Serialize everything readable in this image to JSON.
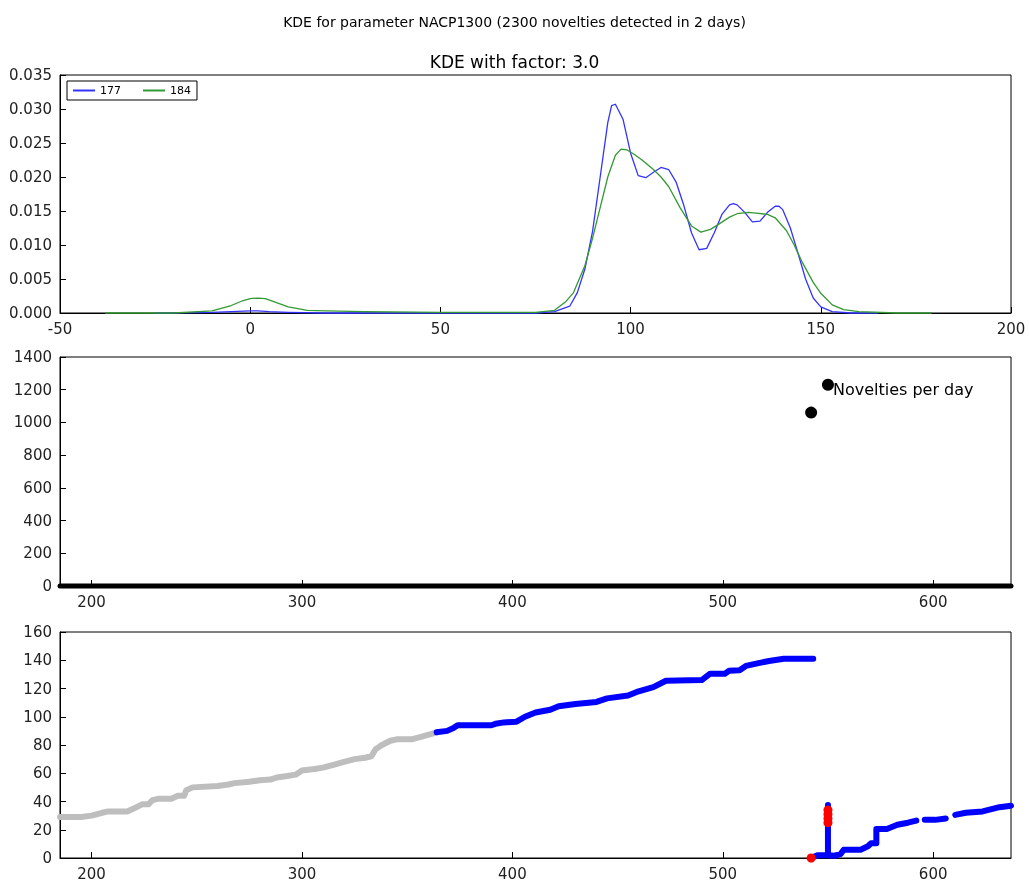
{
  "chart_data": [
    {
      "type": "line",
      "title": "KDE for parameter NACP1300 (2300 novelties detected in 2 days)",
      "subtitle": "KDE with factor: 3.0",
      "marker": "none",
      "legend": "top left",
      "line_style": "solid",
      "xlim": [
        -50,
        200
      ],
      "xticks": [
        -50,
        0,
        50,
        100,
        150,
        200
      ],
      "ylim": [
        0,
        0.035
      ],
      "yticks": [
        {
          "value": 0,
          "label": "0.000"
        },
        0.005,
        {
          "value": 0.01,
          "label": "0.010"
        },
        0.015,
        {
          "value": 0.02,
          "label": "0.020"
        },
        0.025,
        {
          "value": 0.03,
          "label": "0.030"
        },
        0.035
      ],
      "series": [
        {
          "name": "177",
          "color": "#3333ff",
          "x": [
            -25,
            -10,
            -5,
            0,
            2,
            5,
            10,
            20,
            50,
            75,
            80,
            84,
            86,
            88,
            90,
            92,
            94,
            95,
            96,
            98,
            100,
            102,
            104,
            106,
            108,
            110,
            112,
            114,
            116,
            118,
            120,
            122,
            124,
            126,
            127,
            128,
            130,
            132,
            134,
            136,
            138,
            139,
            140,
            142,
            144,
            146,
            148,
            150,
            153,
            158,
            165
          ],
          "values": [
            0,
            0.0001,
            0.0002,
            0.0003,
            0.0003,
            0.0002,
            0.0001,
            0,
            0,
            0,
            0.0002,
            0.001,
            0.003,
            0.0065,
            0.012,
            0.02,
            0.028,
            0.0305,
            0.0307,
            0.0285,
            0.0235,
            0.0202,
            0.0199,
            0.0207,
            0.0214,
            0.0211,
            0.0192,
            0.0158,
            0.0118,
            0.0093,
            0.0095,
            0.0118,
            0.0145,
            0.0159,
            0.0161,
            0.0159,
            0.0148,
            0.0134,
            0.0135,
            0.0148,
            0.0157,
            0.0157,
            0.0152,
            0.0125,
            0.0088,
            0.005,
            0.0022,
            0.0009,
            0.0002,
            0,
            0
          ]
        },
        {
          "name": "184",
          "color": "#339933",
          "x": [
            -38,
            -20,
            -10,
            -5,
            -2,
            0,
            2,
            4,
            6,
            10,
            15,
            20,
            30,
            50,
            75,
            80,
            83,
            85,
            88,
            90,
            92,
            94,
            96,
            97.5,
            99,
            101,
            103,
            106,
            108,
            110,
            113,
            116,
            118.5,
            121,
            123,
            126,
            128,
            131,
            133,
            136,
            138,
            141,
            143,
            145,
            148,
            150,
            153,
            156,
            160,
            170,
            179
          ],
          "values": [
            0,
            0,
            0.0003,
            0.0011,
            0.0018,
            0.0021,
            0.0022,
            0.0021,
            0.0017,
            0.0009,
            0.0004,
            0.0003,
            0.0002,
            0.0001,
            0.0001,
            0.0004,
            0.0017,
            0.003,
            0.007,
            0.011,
            0.0155,
            0.02,
            0.0232,
            0.0241,
            0.024,
            0.0233,
            0.0225,
            0.0211,
            0.02,
            0.0186,
            0.0155,
            0.0128,
            0.0119,
            0.0123,
            0.013,
            0.0141,
            0.0146,
            0.0148,
            0.0147,
            0.0145,
            0.014,
            0.0121,
            0.01,
            0.0076,
            0.0045,
            0.0029,
            0.0012,
            0.0005,
            0.0002,
            0,
            0
          ]
        }
      ]
    },
    {
      "type": "scatter",
      "marker": "circle",
      "xlim": [
        185,
        637
      ],
      "xticks": [
        200,
        300,
        400,
        500,
        600
      ],
      "ylim": [
        0,
        1400
      ],
      "yticks": [
        0,
        200,
        400,
        600,
        800,
        1000,
        1200,
        1400
      ],
      "annotations": [
        {
          "text": "Novelties per day",
          "x": 550,
          "y": 1230
        }
      ],
      "series": [
        {
          "type": "line",
          "marker": "none",
          "color": "#000000",
          "x": [
            185,
            637
          ],
          "values": [
            0,
            0
          ]
        },
        {
          "color": "#000000",
          "x": [
            542,
            550
          ],
          "values": [
            1060,
            1230
          ]
        }
      ]
    },
    {
      "type": "line",
      "marker": "none",
      "xlim": [
        185,
        637
      ],
      "xticks": [
        200,
        300,
        400,
        500,
        600
      ],
      "ylim": [
        0,
        160
      ],
      "yticks": [
        0,
        20,
        40,
        60,
        80,
        100,
        120,
        140,
        160
      ],
      "series": [
        {
          "color": "#bebebe",
          "x": [
            185,
            195,
            200,
            205,
            208,
            217,
            220,
            224,
            227,
            229,
            232,
            238,
            241,
            244,
            245,
            248,
            260,
            265,
            268,
            275,
            280,
            285,
            288,
            293,
            297,
            300,
            306,
            310,
            315,
            320,
            325,
            330,
            333,
            335,
            338,
            342,
            345,
            352,
            357,
            362,
            364
          ],
          "values": [
            29,
            29,
            30,
            32,
            33,
            33,
            35,
            38,
            38,
            41,
            42,
            42,
            44,
            44,
            48,
            50,
            51,
            52,
            53,
            54,
            55,
            55.5,
            57,
            58,
            59,
            62,
            63,
            64,
            66,
            68,
            70,
            71,
            72,
            77,
            80,
            83,
            84,
            84,
            86,
            88,
            89
          ]
        },
        {
          "color": "#0000ff",
          "x": [
            364,
            369,
            372,
            374,
            390,
            392,
            396,
            402,
            406,
            411,
            418,
            422,
            430,
            440,
            445,
            455,
            460,
            467,
            473,
            490,
            494,
            501,
            503,
            508,
            511,
            517,
            522,
            529,
            543
          ],
          "values": [
            89,
            90,
            92,
            94,
            94,
            95,
            96,
            96.5,
            100,
            103,
            105,
            107.5,
            109,
            110.5,
            113,
            115,
            118,
            121,
            125.5,
            126,
            130.5,
            130.5,
            132.5,
            133,
            136,
            138,
            139.5,
            141,
            141
          ]
        },
        {
          "color": "#0000ff",
          "x": [
            542,
            545,
            549,
            550,
            550,
            550,
            553,
            556,
            557.5,
            565.5,
            569,
            570.5,
            573,
            573,
            578,
            583,
            588,
            592,
            594,
            596,
            601,
            606,
            608,
            610.5,
            615.5,
            623.5,
            631.5,
            637
          ],
          "values": [
            0,
            2,
            2,
            2,
            37.5,
            2,
            1.6,
            2.8,
            5.9,
            5.9,
            8.3,
            10.4,
            10.4,
            20.5,
            20.5,
            23.5,
            25,
            26.5,
            null,
            27,
            27,
            28,
            null,
            30.5,
            32,
            33,
            36,
            37
          ]
        },
        {
          "type": "scatter",
          "marker": "circle",
          "color": "#ff0000",
          "x": [
            542,
            550,
            550,
            550,
            550
          ],
          "values": [
            0,
            25,
            28,
            31,
            34
          ]
        }
      ]
    }
  ]
}
